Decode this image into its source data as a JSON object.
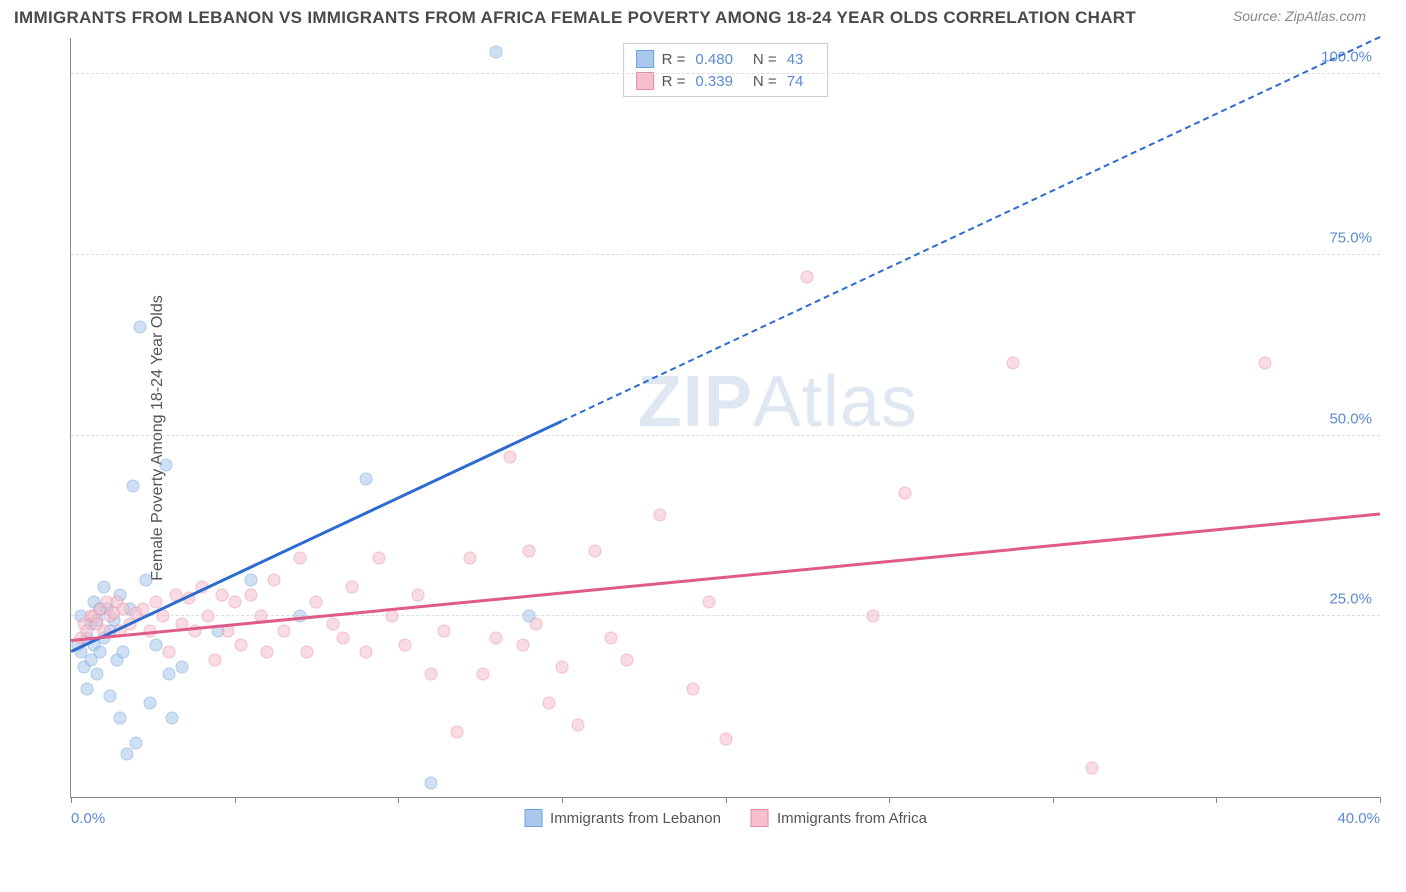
{
  "title": "IMMIGRANTS FROM LEBANON VS IMMIGRANTS FROM AFRICA FEMALE POVERTY AMONG 18-24 YEAR OLDS CORRELATION CHART",
  "source": "Source: ZipAtlas.com",
  "watermark_a": "ZIP",
  "watermark_b": "Atlas",
  "chart": {
    "type": "scatter",
    "ylabel": "Female Poverty Among 18-24 Year Olds",
    "xlim": [
      0,
      40
    ],
    "ylim": [
      0,
      105
    ],
    "xticks": [
      0,
      5,
      10,
      15,
      20,
      25,
      30,
      35,
      40
    ],
    "xtick_labels_shown": {
      "0": "0.0%",
      "40": "40.0%"
    },
    "yticks": [
      25,
      50,
      75,
      100
    ],
    "ytick_labels": {
      "25": "25.0%",
      "50": "50.0%",
      "75": "75.0%",
      "100": "100.0%"
    },
    "background_color": "#ffffff",
    "grid_color": "#dddddd",
    "axis_color": "#888888",
    "tick_label_color": "#5b8bd4",
    "marker_size": 13,
    "marker_opacity": 0.55,
    "series": [
      {
        "name": "Immigrants from Lebanon",
        "color_fill": "#a9c8ec",
        "color_stroke": "#6ea0dc",
        "trend_color": "#2e6bd0",
        "trend_solid_end_x": 15,
        "trend_start": [
          0,
          20
        ],
        "trend_end": [
          40,
          105
        ],
        "legend_R": "0.480",
        "legend_N": "43",
        "points": [
          [
            0.2,
            21
          ],
          [
            0.3,
            25
          ],
          [
            0.3,
            20
          ],
          [
            0.4,
            18
          ],
          [
            0.5,
            22
          ],
          [
            0.5,
            15
          ],
          [
            0.6,
            24
          ],
          [
            0.6,
            19
          ],
          [
            0.7,
            27
          ],
          [
            0.7,
            21
          ],
          [
            0.8,
            24.5
          ],
          [
            0.8,
            17
          ],
          [
            0.9,
            26
          ],
          [
            0.9,
            20
          ],
          [
            1.0,
            29
          ],
          [
            1.0,
            22
          ],
          [
            1.1,
            26
          ],
          [
            1.2,
            14
          ],
          [
            1.2,
            23
          ],
          [
            1.3,
            24.5
          ],
          [
            1.4,
            19
          ],
          [
            1.5,
            11
          ],
          [
            1.5,
            28
          ],
          [
            1.6,
            20
          ],
          [
            1.7,
            6
          ],
          [
            1.8,
            26
          ],
          [
            1.9,
            43
          ],
          [
            2.0,
            7.5
          ],
          [
            2.1,
            65
          ],
          [
            2.3,
            30
          ],
          [
            2.4,
            13
          ],
          [
            2.6,
            21
          ],
          [
            2.9,
            46
          ],
          [
            3.0,
            17
          ],
          [
            3.1,
            11
          ],
          [
            3.4,
            18
          ],
          [
            4.5,
            23
          ],
          [
            5.5,
            30
          ],
          [
            7.0,
            25
          ],
          [
            9.0,
            44
          ],
          [
            11.0,
            2
          ],
          [
            14.0,
            25
          ],
          [
            13.0,
            103
          ]
        ]
      },
      {
        "name": "Immigrants from Africa",
        "color_fill": "#f5c0cc",
        "color_stroke": "#e88aa3",
        "trend_color": "#e05a8a",
        "trend_solid_end_x": 40,
        "trend_start": [
          0,
          21.5
        ],
        "trend_end": [
          40,
          39
        ],
        "legend_R": "0.339",
        "legend_N": "74",
        "points": [
          [
            0.3,
            22
          ],
          [
            0.4,
            24
          ],
          [
            0.5,
            23
          ],
          [
            0.6,
            25
          ],
          [
            0.7,
            25
          ],
          [
            0.8,
            24
          ],
          [
            0.9,
            26
          ],
          [
            1.0,
            23
          ],
          [
            1.1,
            27
          ],
          [
            1.2,
            25
          ],
          [
            1.3,
            25.5
          ],
          [
            1.4,
            27
          ],
          [
            1.5,
            23
          ],
          [
            1.6,
            26
          ],
          [
            1.8,
            24
          ],
          [
            2.0,
            25.5
          ],
          [
            2.2,
            26
          ],
          [
            2.4,
            23
          ],
          [
            2.6,
            27
          ],
          [
            2.8,
            25
          ],
          [
            3.0,
            20
          ],
          [
            3.2,
            28
          ],
          [
            3.4,
            24
          ],
          [
            3.6,
            27.5
          ],
          [
            3.8,
            23
          ],
          [
            4.0,
            29
          ],
          [
            4.2,
            25
          ],
          [
            4.4,
            19
          ],
          [
            4.6,
            28
          ],
          [
            4.8,
            23
          ],
          [
            5.0,
            27
          ],
          [
            5.2,
            21
          ],
          [
            5.5,
            28
          ],
          [
            5.8,
            25
          ],
          [
            6.0,
            20
          ],
          [
            6.2,
            30
          ],
          [
            6.5,
            23
          ],
          [
            7.0,
            33
          ],
          [
            7.2,
            20
          ],
          [
            7.5,
            27
          ],
          [
            8.0,
            24
          ],
          [
            8.3,
            22
          ],
          [
            8.6,
            29
          ],
          [
            9.0,
            20
          ],
          [
            9.4,
            33
          ],
          [
            9.8,
            25
          ],
          [
            10.2,
            21
          ],
          [
            10.6,
            28
          ],
          [
            11.0,
            17
          ],
          [
            11.4,
            23
          ],
          [
            11.8,
            9
          ],
          [
            12.2,
            33
          ],
          [
            12.6,
            17
          ],
          [
            13.0,
            22
          ],
          [
            13.4,
            47
          ],
          [
            13.8,
            21
          ],
          [
            14.2,
            24
          ],
          [
            14.6,
            13
          ],
          [
            15.0,
            18
          ],
          [
            15.5,
            10
          ],
          [
            16.0,
            34
          ],
          [
            16.5,
            22
          ],
          [
            17.0,
            19
          ],
          [
            18.0,
            39
          ],
          [
            19.0,
            15
          ],
          [
            19.5,
            27
          ],
          [
            20.0,
            8
          ],
          [
            22.5,
            72
          ],
          [
            24.5,
            25
          ],
          [
            25.5,
            42
          ],
          [
            28.8,
            60
          ],
          [
            31.2,
            4
          ],
          [
            36.5,
            60
          ],
          [
            14.0,
            34
          ]
        ]
      }
    ]
  }
}
